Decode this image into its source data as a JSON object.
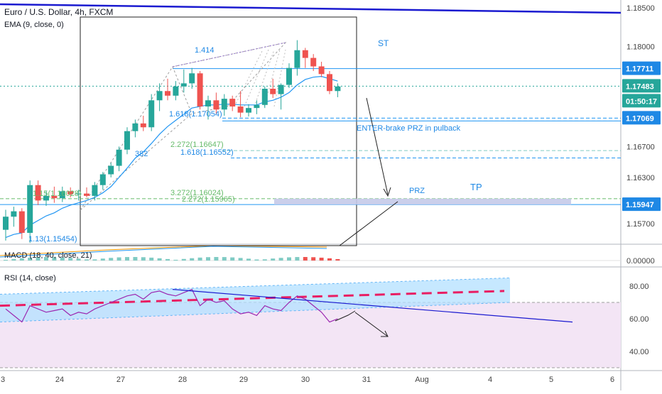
{
  "header": {
    "title": "Euro / U.S. Dollar, 4h, FXCM",
    "ema_label": "EMA (9, close, 0)",
    "macd_label": "MACD (18, 40, close, 21)",
    "rsi_label": "RSI (14, close)"
  },
  "annotations": {
    "st": "ST",
    "enter": "ENTER-brake PRZ in pulback",
    "prz": "PRZ",
    "tp": "TP",
    "ratio_1414": "1.414",
    "ratio_382": "382",
    "fib_1618_a": "1.618(1.17054)",
    "fib_2272": "2.272(1.16647)",
    "fib_1618_b": "1.618(1.16552)",
    "fib_3272": "3.272(1.16024)",
    "fib_2272_b": "2.272(1.15965)",
    "fib_113": "1.13(1.15454)",
    "fib_left": "1.15(1.16028)"
  },
  "price_axis": {
    "ticks": [
      "1.18500",
      "1.18000",
      "1.16700",
      "1.16300",
      "1.15700"
    ],
    "badges": [
      {
        "label": "1.17711",
        "kind": "line"
      },
      {
        "label": "1.17483",
        "kind": "last"
      },
      {
        "label": "01:50:17",
        "kind": "timer"
      },
      {
        "label": "1.17069",
        "kind": "line"
      },
      {
        "label": "1.15947",
        "kind": "line"
      }
    ]
  },
  "macd_axis": {
    "ticks": [
      "0.00000"
    ]
  },
  "rsi_axis": {
    "ticks": [
      "80.00",
      "60.00",
      "40.00"
    ]
  },
  "time_axis": {
    "ticks": [
      "3",
      "24",
      "27",
      "28",
      "29",
      "30",
      "31",
      "Aug",
      "4",
      "5",
      "6"
    ]
  },
  "colors": {
    "up": "#26a69a",
    "down": "#ef5350",
    "ema": "#2196f3",
    "trend": "#1a1ad0",
    "rsi": "#9c27b0",
    "rsi_band": "#b3e0ff",
    "rsi_zone": "#f3e5f5",
    "prz_band": "#c5cae9"
  },
  "chart_data": {
    "type": "candlestick",
    "candles": [
      {
        "o": 1.1562,
        "h": 1.1588,
        "l": 1.1548,
        "c": 1.1579
      },
      {
        "o": 1.1579,
        "h": 1.1592,
        "l": 1.1566,
        "c": 1.1586
      },
      {
        "o": 1.1586,
        "h": 1.159,
        "l": 1.155,
        "c": 1.1558
      },
      {
        "o": 1.1558,
        "h": 1.1626,
        "l": 1.1545,
        "c": 1.162
      },
      {
        "o": 1.162,
        "h": 1.1626,
        "l": 1.1594,
        "c": 1.16
      },
      {
        "o": 1.16,
        "h": 1.1612,
        "l": 1.1593,
        "c": 1.1606
      },
      {
        "o": 1.1606,
        "h": 1.1618,
        "l": 1.1597,
        "c": 1.1603
      },
      {
        "o": 1.1603,
        "h": 1.1618,
        "l": 1.1598,
        "c": 1.1612
      },
      {
        "o": 1.1612,
        "h": 1.1617,
        "l": 1.1604,
        "c": 1.1608
      },
      {
        "o": 1.1608,
        "h": 1.1614,
        "l": 1.16,
        "c": 1.1609
      },
      {
        "o": 1.1609,
        "h": 1.1617,
        "l": 1.1604,
        "c": 1.1606
      },
      {
        "o": 1.1606,
        "h": 1.1624,
        "l": 1.16,
        "c": 1.162
      },
      {
        "o": 1.162,
        "h": 1.1637,
        "l": 1.1614,
        "c": 1.1634
      },
      {
        "o": 1.1634,
        "h": 1.1649,
        "l": 1.163,
        "c": 1.1645
      },
      {
        "o": 1.1645,
        "h": 1.167,
        "l": 1.1638,
        "c": 1.1666
      },
      {
        "o": 1.1666,
        "h": 1.1695,
        "l": 1.166,
        "c": 1.169
      },
      {
        "o": 1.169,
        "h": 1.1705,
        "l": 1.1682,
        "c": 1.17
      },
      {
        "o": 1.17,
        "h": 1.171,
        "l": 1.169,
        "c": 1.1695
      },
      {
        "o": 1.1695,
        "h": 1.1738,
        "l": 1.169,
        "c": 1.173
      },
      {
        "o": 1.173,
        "h": 1.1752,
        "l": 1.1716,
        "c": 1.1742
      },
      {
        "o": 1.1742,
        "h": 1.1758,
        "l": 1.173,
        "c": 1.1736
      },
      {
        "o": 1.1736,
        "h": 1.1755,
        "l": 1.173,
        "c": 1.1748
      },
      {
        "o": 1.1748,
        "h": 1.177,
        "l": 1.174,
        "c": 1.1752
      },
      {
        "o": 1.1752,
        "h": 1.1772,
        "l": 1.1745,
        "c": 1.1765
      },
      {
        "o": 1.1765,
        "h": 1.1768,
        "l": 1.1718,
        "c": 1.1722
      },
      {
        "o": 1.1722,
        "h": 1.1736,
        "l": 1.1705,
        "c": 1.173
      },
      {
        "o": 1.173,
        "h": 1.174,
        "l": 1.1712,
        "c": 1.1718
      },
      {
        "o": 1.1718,
        "h": 1.1738,
        "l": 1.171,
        "c": 1.1732
      },
      {
        "o": 1.1732,
        "h": 1.1736,
        "l": 1.1716,
        "c": 1.1722
      },
      {
        "o": 1.1722,
        "h": 1.1742,
        "l": 1.1708,
        "c": 1.1714
      },
      {
        "o": 1.1714,
        "h": 1.1725,
        "l": 1.1709,
        "c": 1.172
      },
      {
        "o": 1.172,
        "h": 1.173,
        "l": 1.1712,
        "c": 1.1724
      },
      {
        "o": 1.1724,
        "h": 1.1748,
        "l": 1.172,
        "c": 1.1745
      },
      {
        "o": 1.1745,
        "h": 1.1758,
        "l": 1.1733,
        "c": 1.1738
      },
      {
        "o": 1.1738,
        "h": 1.1752,
        "l": 1.1718,
        "c": 1.175
      },
      {
        "o": 1.175,
        "h": 1.1778,
        "l": 1.1746,
        "c": 1.1772
      },
      {
        "o": 1.1772,
        "h": 1.1808,
        "l": 1.1762,
        "c": 1.1795
      },
      {
        "o": 1.1795,
        "h": 1.1798,
        "l": 1.1772,
        "c": 1.1785
      },
      {
        "o": 1.1785,
        "h": 1.179,
        "l": 1.1768,
        "c": 1.1774
      },
      {
        "o": 1.1774,
        "h": 1.178,
        "l": 1.176,
        "c": 1.1764
      },
      {
        "o": 1.1764,
        "h": 1.1768,
        "l": 1.1738,
        "c": 1.1742
      },
      {
        "o": 1.1742,
        "h": 1.1752,
        "l": 1.1734,
        "c": 1.1748
      }
    ],
    "ema": [
      1.1552,
      1.1556,
      1.1558,
      1.1568,
      1.1574,
      1.158,
      1.1584,
      1.159,
      1.1594,
      1.1597,
      1.16,
      1.1604,
      1.161,
      1.1618,
      1.163,
      1.1642,
      1.1655,
      1.1663,
      1.1674,
      1.1686,
      1.1696,
      1.1704,
      1.1712,
      1.172,
      1.1722,
      1.1724,
      1.1724,
      1.1725,
      1.1725,
      1.1724,
      1.1724,
      1.1724,
      1.1728,
      1.173,
      1.1734,
      1.174,
      1.175,
      1.1757,
      1.176,
      1.1761,
      1.1758,
      1.1755
    ],
    "rsi": [
      66,
      62,
      58,
      68,
      66,
      64,
      65,
      66,
      62,
      64,
      63,
      66,
      68,
      70,
      72,
      74,
      75,
      72,
      76,
      77,
      75,
      74,
      76,
      78,
      68,
      72,
      70,
      71,
      66,
      63,
      64,
      62,
      68,
      66,
      65,
      70,
      74,
      72,
      68,
      64,
      58,
      60
    ]
  }
}
